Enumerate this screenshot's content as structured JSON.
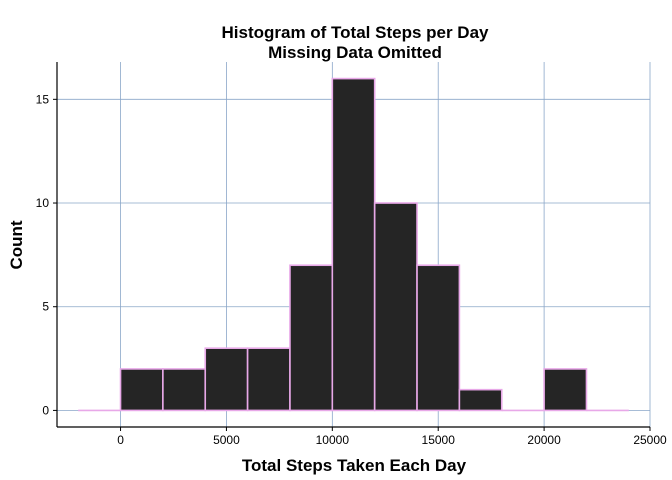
{
  "chart_data": {
    "type": "bar",
    "title": "Histogram of Total Steps per Day",
    "subtitle": "Missing Data Omitted",
    "xlabel": "Total Steps Taken Each Day",
    "ylabel": "Count",
    "bins": [
      {
        "start": -2000,
        "end": 0,
        "count": 0
      },
      {
        "start": 0,
        "end": 2000,
        "count": 2
      },
      {
        "start": 2000,
        "end": 4000,
        "count": 2
      },
      {
        "start": 4000,
        "end": 6000,
        "count": 3
      },
      {
        "start": 6000,
        "end": 8000,
        "count": 3
      },
      {
        "start": 8000,
        "end": 10000,
        "count": 7
      },
      {
        "start": 10000,
        "end": 12000,
        "count": 16
      },
      {
        "start": 12000,
        "end": 14000,
        "count": 10
      },
      {
        "start": 14000,
        "end": 16000,
        "count": 7
      },
      {
        "start": 16000,
        "end": 18000,
        "count": 1
      },
      {
        "start": 18000,
        "end": 20000,
        "count": 0
      },
      {
        "start": 20000,
        "end": 22000,
        "count": 2
      },
      {
        "start": 22000,
        "end": 24000,
        "count": 0
      }
    ],
    "x_ticks": [
      0,
      5000,
      10000,
      15000,
      20000,
      25000
    ],
    "y_ticks": [
      0,
      5,
      10,
      15
    ],
    "xlim": [
      -3000,
      25000
    ],
    "ylim": [
      -0.8,
      16.8
    ],
    "grid": true,
    "bar_fill": "#252525",
    "bar_outline": "#e8a8e8"
  }
}
